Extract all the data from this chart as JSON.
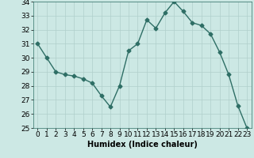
{
  "x": [
    0,
    1,
    2,
    3,
    4,
    5,
    6,
    7,
    8,
    9,
    10,
    11,
    12,
    13,
    14,
    15,
    16,
    17,
    18,
    19,
    20,
    21,
    22,
    23
  ],
  "y": [
    31.0,
    30.0,
    29.0,
    28.8,
    28.7,
    28.5,
    28.2,
    27.3,
    26.5,
    28.0,
    30.5,
    31.0,
    32.7,
    32.1,
    33.2,
    34.0,
    33.3,
    32.5,
    32.3,
    31.7,
    30.4,
    28.8,
    26.6,
    25.0
  ],
  "line_color": "#2e6e65",
  "marker": "D",
  "markersize": 2.5,
  "linewidth": 1.0,
  "xlabel": "Humidex (Indice chaleur)",
  "ylim": [
    25,
    34
  ],
  "xlim": [
    -0.5,
    23.5
  ],
  "yticks": [
    25,
    26,
    27,
    28,
    29,
    30,
    31,
    32,
    33,
    34
  ],
  "xticks": [
    0,
    1,
    2,
    3,
    4,
    5,
    6,
    7,
    8,
    9,
    10,
    11,
    12,
    13,
    14,
    15,
    16,
    17,
    18,
    19,
    20,
    21,
    22,
    23
  ],
  "bg_color": "#cce8e4",
  "grid_color": "#b0cfcb",
  "xlabel_fontsize": 7,
  "tick_fontsize": 6.5
}
